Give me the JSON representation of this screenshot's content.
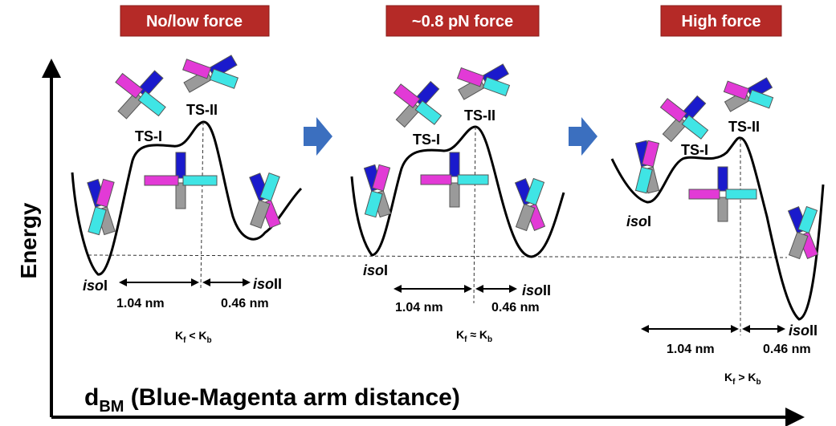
{
  "axes": {
    "y_label": "Energy",
    "x_label_main": "d",
    "x_label_sub": "BM",
    "x_label_rest": " (Blue-Magenta arm distance)"
  },
  "panels": [
    {
      "badge": "No/low force",
      "ts1": "TS-I",
      "ts2": "TS-II",
      "iso_prefix": "iso",
      "iso1_suffix": "I",
      "iso2_suffix": "II",
      "dist1": "1.04 nm",
      "dist2": "0.46 nm",
      "rate_main": "K",
      "rate_sub": "f",
      "rate_rel": " < K",
      "rate_sub2": "b"
    },
    {
      "badge": "~0.8 pN force",
      "ts1": "TS-I",
      "ts2": "TS-II",
      "iso_prefix": "iso",
      "iso1_suffix": "I",
      "iso2_suffix": "II",
      "dist1": "1.04 nm",
      "dist2": "0.46 nm",
      "rate_main": "K",
      "rate_sub": "f",
      "rate_rel": " ≈ K",
      "rate_sub2": "b"
    },
    {
      "badge": "High force",
      "ts1": "TS-I",
      "ts2": "TS-II",
      "iso_prefix": "iso",
      "iso1_suffix": "I",
      "iso2_suffix": "II",
      "dist1": "1.04 nm",
      "dist2": "0.46 nm",
      "rate_main": "K",
      "rate_sub": "f",
      "rate_rel": " > K",
      "rate_sub2": "b"
    }
  ],
  "colors": {
    "badge_bg": "#b52a27",
    "blue_arm": "#1a1acc",
    "magenta_arm": "#e23ad6",
    "cyan_arm": "#3fe5e5",
    "gray_arm": "#9a9a9a",
    "step_arrow": "#3b6fbf"
  }
}
